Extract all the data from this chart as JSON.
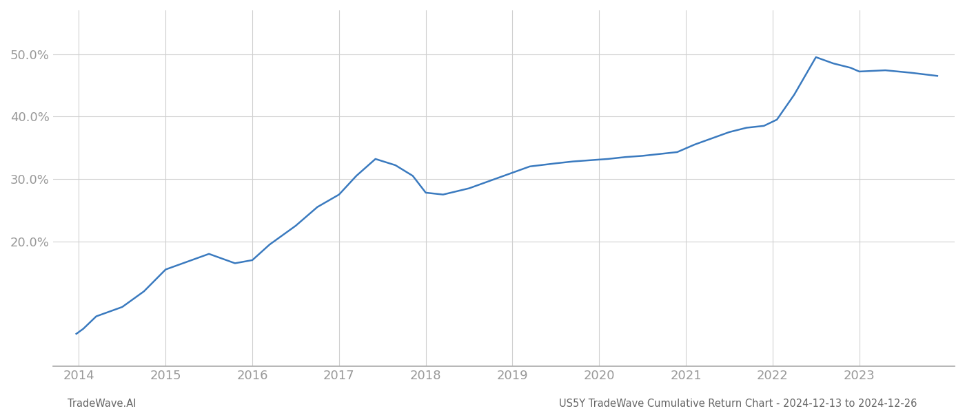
{
  "x_values": [
    2013.97,
    2014.05,
    2014.2,
    2014.5,
    2014.75,
    2015.0,
    2015.2,
    2015.5,
    2015.8,
    2016.0,
    2016.2,
    2016.5,
    2016.75,
    2017.0,
    2017.2,
    2017.42,
    2017.65,
    2017.85,
    2018.0,
    2018.2,
    2018.5,
    2018.8,
    2019.0,
    2019.2,
    2019.5,
    2019.7,
    2019.9,
    2020.1,
    2020.3,
    2020.5,
    2020.7,
    2020.9,
    2021.1,
    2021.3,
    2021.5,
    2021.7,
    2021.9,
    2022.05,
    2022.25,
    2022.5,
    2022.7,
    2022.9,
    2023.0,
    2023.3,
    2023.6,
    2023.9
  ],
  "y_values": [
    5.2,
    6.0,
    8.0,
    9.5,
    12.0,
    15.5,
    16.5,
    18.0,
    16.5,
    17.0,
    19.5,
    22.5,
    25.5,
    27.5,
    30.5,
    33.2,
    32.2,
    30.5,
    27.8,
    27.5,
    28.5,
    30.0,
    31.0,
    32.0,
    32.5,
    32.8,
    33.0,
    33.2,
    33.5,
    33.7,
    34.0,
    34.3,
    35.5,
    36.5,
    37.5,
    38.2,
    38.5,
    39.5,
    43.5,
    49.5,
    48.5,
    47.8,
    47.2,
    47.4,
    47.0,
    46.5
  ],
  "line_color": "#3a7abf",
  "line_width": 1.8,
  "bg_color": "#ffffff",
  "grid_color": "#d0d0d0",
  "ytick_labels": [
    "20.0%",
    "30.0%",
    "40.0%",
    "50.0%"
  ],
  "ytick_values": [
    20,
    30,
    40,
    50
  ],
  "xtick_labels": [
    "2014",
    "2015",
    "2016",
    "2017",
    "2018",
    "2019",
    "2020",
    "2021",
    "2022",
    "2023"
  ],
  "xtick_values": [
    2014,
    2015,
    2016,
    2017,
    2018,
    2019,
    2020,
    2021,
    2022,
    2023
  ],
  "xlim": [
    2013.7,
    2024.1
  ],
  "ylim": [
    0,
    57
  ],
  "footer_left": "TradeWave.AI",
  "footer_right": "US5Y TradeWave Cumulative Return Chart - 2024-12-13 to 2024-12-26",
  "footer_fontsize": 10.5,
  "tick_fontsize": 13,
  "tick_color": "#999999",
  "spine_bottom_color": "#aaaaaa"
}
